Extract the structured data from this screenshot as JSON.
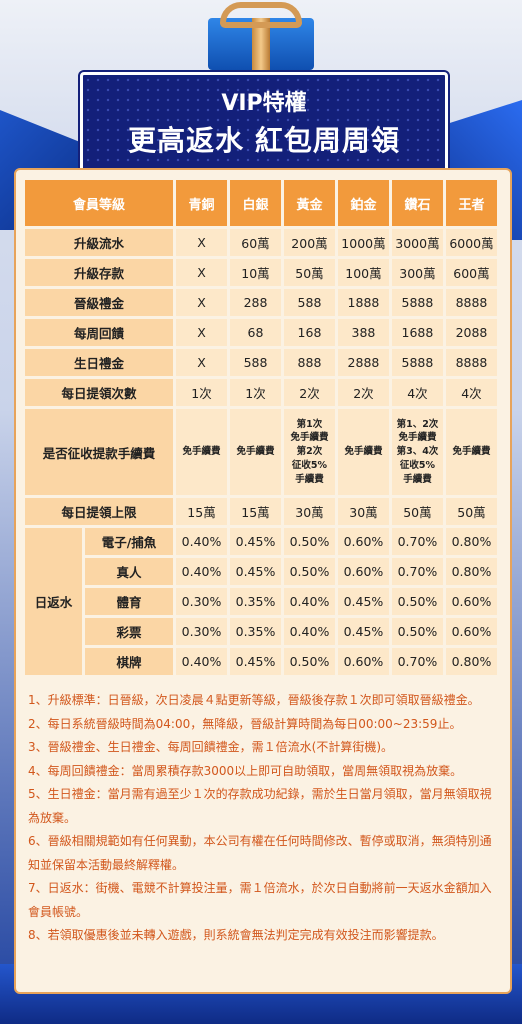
{
  "header": {
    "title_line1": "VIP特權",
    "title_line2": "更高返水 紅包周周領"
  },
  "table": {
    "corner": "會員等級",
    "levels": [
      "青銅",
      "白銀",
      "黃金",
      "鉑金",
      "鑽石",
      "王者"
    ],
    "rows": [
      {
        "label": "升級流水",
        "values": [
          "X",
          "60萬",
          "200萬",
          "1000萬",
          "3000萬",
          "6000萬"
        ]
      },
      {
        "label": "升級存款",
        "values": [
          "X",
          "10萬",
          "50萬",
          "100萬",
          "300萬",
          "600萬"
        ]
      },
      {
        "label": "晉級禮金",
        "values": [
          "X",
          "288",
          "588",
          "1888",
          "5888",
          "8888"
        ]
      },
      {
        "label": "每周回饋",
        "values": [
          "X",
          "68",
          "168",
          "388",
          "1688",
          "2088"
        ]
      },
      {
        "label": "生日禮金",
        "values": [
          "X",
          "588",
          "888",
          "2888",
          "5888",
          "8888"
        ]
      },
      {
        "label": "每日提領次數",
        "values": [
          "1次",
          "1次",
          "2次",
          "2次",
          "4次",
          "4次"
        ]
      }
    ],
    "fee_row": {
      "label": "是否征收提款手續費",
      "values": [
        "免手續費",
        "免手續費",
        "第1次 免手續費 第2次 征收5% 手續費",
        "免手續費",
        "第1、2次 免手續費 第3、4次 征收5% 手續費",
        "免手續費"
      ],
      "gold_lines": [
        "第1次",
        "免手續費",
        "第2次",
        "征收5%",
        "手續費"
      ],
      "diamond_lines": [
        "第1、2次",
        "免手續費",
        "第3、4次",
        "征收5%",
        "手續費"
      ]
    },
    "limit_row": {
      "label": "每日提領上限",
      "values": [
        "15萬",
        "15萬",
        "30萬",
        "30萬",
        "50萬",
        "50萬"
      ]
    },
    "rebate": {
      "label": "日返水",
      "rows": [
        {
          "label": "電子/捕魚",
          "values": [
            "0.40%",
            "0.45%",
            "0.50%",
            "0.60%",
            "0.70%",
            "0.80%"
          ]
        },
        {
          "label": "真人",
          "values": [
            "0.40%",
            "0.45%",
            "0.50%",
            "0.60%",
            "0.70%",
            "0.80%"
          ]
        },
        {
          "label": "體育",
          "values": [
            "0.30%",
            "0.35%",
            "0.40%",
            "0.45%",
            "0.50%",
            "0.60%"
          ]
        },
        {
          "label": "彩票",
          "values": [
            "0.30%",
            "0.35%",
            "0.40%",
            "0.45%",
            "0.50%",
            "0.60%"
          ]
        },
        {
          "label": "棋牌",
          "values": [
            "0.40%",
            "0.45%",
            "0.50%",
            "0.60%",
            "0.70%",
            "0.80%"
          ]
        }
      ]
    }
  },
  "notes": [
    "1、升級標準：日晉級，次日凌晨４點更新等級，晉級後存款１次即可領取晉級禮金。",
    "2、每日系統晉級時間為04:00，無降級，晉級計算時間為每日00:00~23:59止。",
    "3、晉級禮金、生日禮金、每周回饋禮金，需１倍流水(不計算街機)。",
    "4、每周回饋禮金：當周累積存款3000以上即可自助領取，當周無領取視為放棄。",
    "5、生日禮金：當月需有過至少１次的存款成功紀錄，需於生日當月領取，當月無領取視為放棄。",
    "6、晉級相關規範如有任何異動，本公司有權在任何時間修改、暫停或取消，無須特別通知並保留本活動最終解釋權。",
    "7、日返水：街機、電競不計算投注量，需１倍流水，於次日自動將前一天返水金額加入會員帳號。",
    "8、若領取優惠後並未轉入遊戲，則系統會無法判定完成有效投注而影響提款。"
  ],
  "colors": {
    "header_orange": "#f29a3c",
    "label_peach": "#fbd6a5",
    "cell_cream": "#fde8c9",
    "note_orange": "#d2571c",
    "plate_navy": "#13207a"
  }
}
